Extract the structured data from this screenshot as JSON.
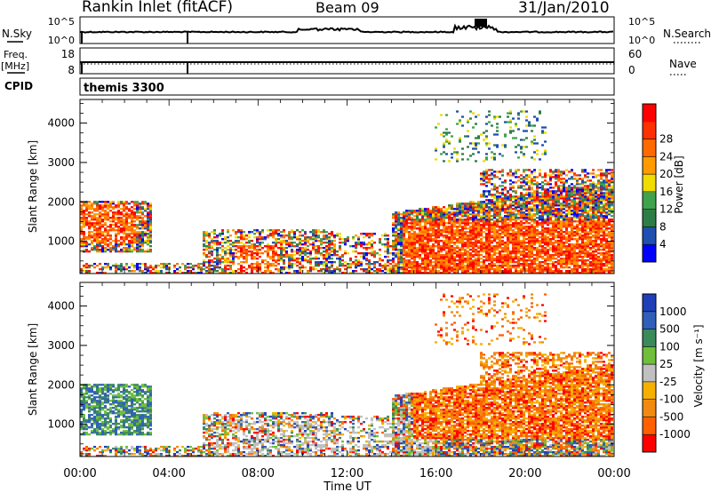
{
  "header": {
    "station": "Rankin Inlet (fitACF)",
    "beam": "Beam 09",
    "date": "31/Jan/2010"
  },
  "noise_panel": {
    "left_label": "N.Sky",
    "right_label": "N.Search",
    "left_ticks": [
      "10^5",
      "10^0"
    ],
    "right_ticks": [
      "10^5",
      "10^0"
    ]
  },
  "freq_panel": {
    "left_label_1": "Freq.",
    "left_label_2": "[MHz]",
    "right_label": "Nave",
    "left_ticks": [
      "18",
      "8"
    ],
    "right_ticks": [
      "60",
      "0"
    ]
  },
  "cpid_panel": {
    "label": "CPID",
    "mode": "themis 3300"
  },
  "colors": {
    "power_scale": [
      "#0000ff",
      "#1f4fb0",
      "#2e7d46",
      "#3fa34d",
      "#f0dc00",
      "#ff9a00",
      "#ff6a00",
      "#ff3000",
      "#ff0000"
    ],
    "velocity_scale": [
      "#1f3fb8",
      "#2f5fb8",
      "#3a8a5a",
      "#6fbf3a",
      "#c0c0c0",
      "#f5b000",
      "#f08a10",
      "#ff6000",
      "#ff0000"
    ]
  },
  "chart_data": [
    {
      "type": "heatmap",
      "panel": "power",
      "xlabel": "",
      "ylabel": "Slant Range [km]",
      "x_ticks": [
        "00:00",
        "04:00",
        "08:00",
        "12:00",
        "16:00",
        "20:00",
        "00:00"
      ],
      "y_ticks": [
        "1000",
        "2000",
        "3000",
        "4000"
      ],
      "ylim": [
        180,
        4600
      ],
      "colorbar": {
        "label": "Power [dB]",
        "ticks": [
          "4",
          "8",
          "12",
          "16",
          "20",
          "24",
          "28"
        ]
      }
    },
    {
      "type": "heatmap",
      "panel": "velocity",
      "xlabel": "Time UT",
      "ylabel": "Slant Range [km]",
      "x_ticks": [
        "00:00",
        "04:00",
        "08:00",
        "12:00",
        "16:00",
        "20:00",
        "00:00"
      ],
      "y_ticks": [
        "1000",
        "2000",
        "3000",
        "4000"
      ],
      "ylim": [
        180,
        4600
      ],
      "colorbar": {
        "label": "Velocity [m s⁻¹]",
        "ticks": [
          "1000",
          "500",
          "100",
          "25",
          "-25",
          "-100",
          "-500",
          "-1000"
        ]
      }
    }
  ]
}
